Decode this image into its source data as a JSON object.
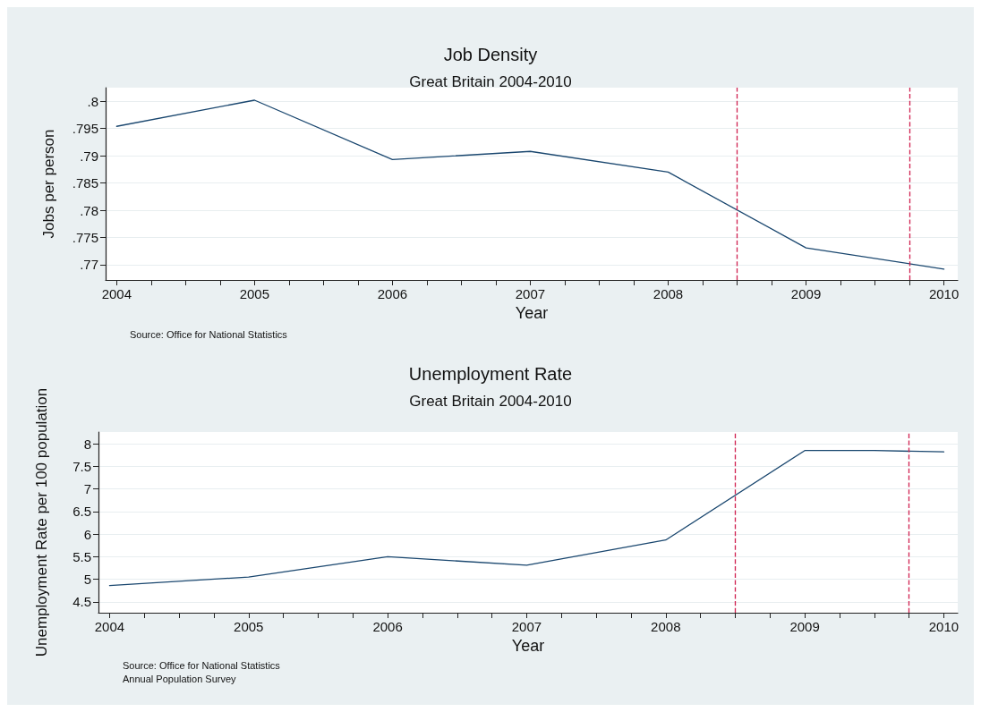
{
  "chart_data": [
    {
      "type": "line",
      "title": "Job Density",
      "subtitle": "Great Britain 2004-2010",
      "xlabel": "Year",
      "ylabel": "Jobs per person",
      "annotations": [
        "Source: Office for National Statistics"
      ],
      "x": [
        2004,
        2005,
        2006,
        2007,
        2008,
        2009,
        2010
      ],
      "series": [
        {
          "color": "#1a476f",
          "values": [
            0.7954,
            0.8002,
            0.7893,
            0.7908,
            0.787,
            0.7731,
            0.7692
          ]
        }
      ],
      "xlim": [
        2003.92,
        2010.1
      ],
      "ylim": [
        0.7672,
        0.8025
      ],
      "xticks": [
        2004,
        {
          "value": 2004.25,
          "label": null
        },
        {
          "value": 2004.5,
          "label": null
        },
        {
          "value": 2004.75,
          "label": null
        },
        2005,
        {
          "value": 2005.25,
          "label": null
        },
        {
          "value": 2005.5,
          "label": null
        },
        {
          "value": 2005.75,
          "label": null
        },
        2006,
        {
          "value": 2006.25,
          "label": null
        },
        {
          "value": 2006.5,
          "label": null
        },
        {
          "value": 2006.75,
          "label": null
        },
        2007,
        {
          "value": 2007.25,
          "label": null
        },
        {
          "value": 2007.5,
          "label": null
        },
        {
          "value": 2007.75,
          "label": null
        },
        2008,
        {
          "value": 2008.25,
          "label": null
        },
        {
          "value": 2008.5,
          "label": null
        },
        {
          "value": 2008.75,
          "label": null
        },
        2009,
        {
          "value": 2009.25,
          "label": null
        },
        {
          "value": 2009.5,
          "label": null
        },
        {
          "value": 2009.75,
          "label": null
        },
        2010
      ],
      "yticks": [
        {
          "value": 0.77,
          "label": ".77"
        },
        {
          "value": 0.775,
          "label": ".775"
        },
        {
          "value": 0.78,
          "label": ".78"
        },
        {
          "value": 0.785,
          "label": ".785"
        },
        {
          "value": 0.79,
          "label": ".79"
        },
        {
          "value": 0.795,
          "label": ".795"
        },
        {
          "value": 0.8,
          "label": ".8"
        }
      ],
      "ref_lines": [
        {
          "axis": "x",
          "value": 2008.5,
          "color": "#d0204f",
          "line_style": "dashed"
        },
        {
          "axis": "x",
          "value": 2009.75,
          "color": "#d0204f",
          "line_style": "dashed"
        }
      ],
      "grid": "y",
      "marker": "none",
      "line_style": "solid"
    },
    {
      "type": "line",
      "title": "Unemployment Rate",
      "subtitle": "Great Britain 2004-2010",
      "xlabel": "Year",
      "ylabel": "Unemployment Rate per 100 population",
      "annotations": [
        "Source: Office for National Statistics",
        "Annual Population Survey"
      ],
      "x": [
        2004,
        2005,
        2006,
        2007,
        2008,
        2009,
        2009.5,
        2010
      ],
      "series": [
        {
          "color": "#1a476f",
          "values": [
            4.86,
            5.05,
            5.5,
            5.31,
            5.87,
            7.85,
            7.85,
            7.82
          ]
        }
      ],
      "xlim": [
        2003.92,
        2010.1
      ],
      "ylim": [
        4.26,
        8.26
      ],
      "xticks": [
        2004,
        {
          "value": 2004.25,
          "label": null
        },
        {
          "value": 2004.5,
          "label": null
        },
        {
          "value": 2004.75,
          "label": null
        },
        2005,
        {
          "value": 2005.25,
          "label": null
        },
        {
          "value": 2005.5,
          "label": null
        },
        {
          "value": 2005.75,
          "label": null
        },
        2006,
        {
          "value": 2006.25,
          "label": null
        },
        {
          "value": 2006.5,
          "label": null
        },
        {
          "value": 2006.75,
          "label": null
        },
        2007,
        {
          "value": 2007.25,
          "label": null
        },
        {
          "value": 2007.5,
          "label": null
        },
        {
          "value": 2007.75,
          "label": null
        },
        2008,
        {
          "value": 2008.25,
          "label": null
        },
        {
          "value": 2008.5,
          "label": null
        },
        {
          "value": 2008.75,
          "label": null
        },
        2009,
        {
          "value": 2009.25,
          "label": null
        },
        {
          "value": 2009.5,
          "label": null
        },
        {
          "value": 2009.75,
          "label": null
        },
        2010
      ],
      "yticks": [
        4.5,
        5,
        5.5,
        6,
        6.5,
        7,
        7.5,
        8
      ],
      "ref_lines": [
        {
          "axis": "x",
          "value": 2008.5,
          "color": "#d0204f",
          "line_style": "dashed"
        },
        {
          "axis": "x",
          "value": 2009.75,
          "color": "#d0204f",
          "line_style": "dashed"
        }
      ],
      "grid": "y",
      "marker": "none",
      "line_style": "solid"
    }
  ]
}
